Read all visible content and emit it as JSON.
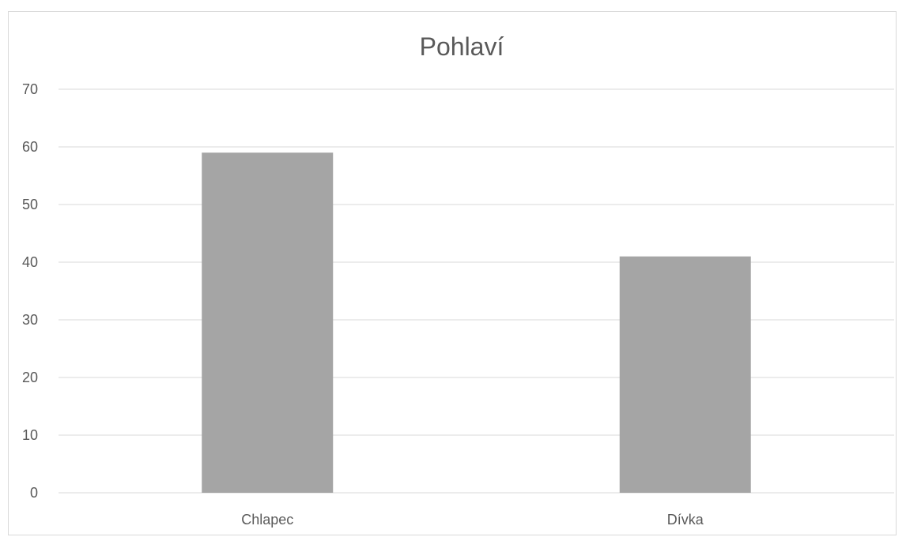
{
  "chart_data": {
    "type": "bar",
    "title": "Pohlaví",
    "categories": [
      "Chlapec",
      "Dívka"
    ],
    "values": [
      59,
      41
    ],
    "ylim": [
      0,
      70
    ],
    "yticks": [
      0,
      10,
      20,
      30,
      40,
      50,
      60,
      70
    ],
    "grid": true,
    "bar_color": "#a5a5a5",
    "xlabel": "",
    "ylabel": ""
  }
}
